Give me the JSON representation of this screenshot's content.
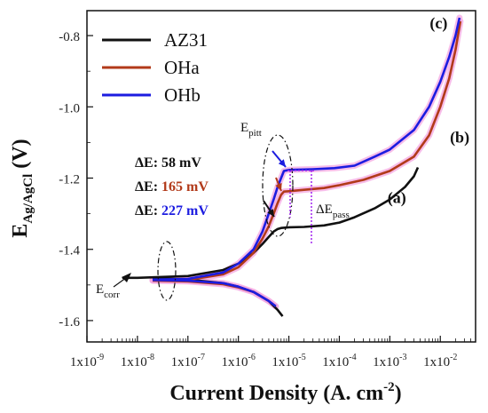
{
  "chart_data": {
    "type": "line",
    "title": "",
    "xlabel": {
      "main": "Current Density (A. cm",
      "sup": "-2",
      "close": ")"
    },
    "ylabel": {
      "main": "E",
      "sub": "Ag/AgCl",
      "rest": " (V)"
    },
    "x_scale": "log",
    "xlim": [
      1e-09,
      0.05
    ],
    "ylim": [
      -1.66,
      -0.73
    ],
    "x_ticks": [
      {
        "value": 1e-09,
        "label": "1x10",
        "exp": "-9"
      },
      {
        "value": 1e-08,
        "label": "1x10",
        "exp": "-8"
      },
      {
        "value": 1e-07,
        "label": "1x10",
        "exp": "-7"
      },
      {
        "value": 1e-06,
        "label": "1x10",
        "exp": "-6"
      },
      {
        "value": 1e-05,
        "label": "1x10",
        "exp": "-5"
      },
      {
        "value": 0.0001,
        "label": "1x10",
        "exp": "-4"
      },
      {
        "value": 0.001,
        "label": "1x10",
        "exp": "-3"
      },
      {
        "value": 0.01,
        "label": "1x10",
        "exp": "-2"
      }
    ],
    "y_ticks": [
      {
        "value": -0.8,
        "label": "-0.8"
      },
      {
        "value": -1.0,
        "label": "-1.0"
      },
      {
        "value": -1.2,
        "label": "-1.2"
      },
      {
        "value": -1.4,
        "label": "-1.4"
      },
      {
        "value": -1.6,
        "label": "-1.6"
      }
    ],
    "grid": false,
    "legend_position": "top-left",
    "series": [
      {
        "name": "AZ31",
        "color": "#111111",
        "highlight": "",
        "tag": "(a)",
        "tag_at": [
          0.0009,
          -1.27
        ],
        "anodic": [
          [
            5e-09,
            -1.48
          ],
          [
            1e-08,
            -1.48
          ],
          [
            1e-07,
            -1.475
          ],
          [
            5e-07,
            -1.458
          ],
          [
            1e-06,
            -1.44
          ],
          [
            2e-06,
            -1.41
          ],
          [
            3e-06,
            -1.385
          ],
          [
            4e-06,
            -1.365
          ],
          [
            5e-06,
            -1.35
          ],
          [
            6e-06,
            -1.343
          ],
          [
            7e-06,
            -1.34
          ],
          [
            1e-05,
            -1.338
          ],
          [
            2e-05,
            -1.337
          ],
          [
            5e-05,
            -1.333
          ],
          [
            0.0001,
            -1.325
          ],
          [
            0.0002,
            -1.31
          ],
          [
            0.0005,
            -1.285
          ],
          [
            0.001,
            -1.26
          ],
          [
            0.002,
            -1.225
          ],
          [
            0.003,
            -1.195
          ],
          [
            0.0036,
            -1.17
          ]
        ],
        "cathodic": [
          [
            2e-08,
            -1.481
          ],
          [
            1e-07,
            -1.485
          ],
          [
            5e-07,
            -1.495
          ],
          [
            1e-06,
            -1.505
          ],
          [
            2e-06,
            -1.52
          ],
          [
            4e-06,
            -1.545
          ],
          [
            6e-06,
            -1.57
          ],
          [
            7.5e-06,
            -1.588
          ]
        ]
      },
      {
        "name": "OHa",
        "color": "#b23a1a",
        "highlight": "#f4a7e2",
        "tag": "(b)",
        "tag_at": [
          0.0155,
          -1.1
        ],
        "anodic": [
          [
            2e-08,
            -1.487
          ],
          [
            1e-07,
            -1.486
          ],
          [
            5e-07,
            -1.47
          ],
          [
            1e-06,
            -1.45
          ],
          [
            2e-06,
            -1.41
          ],
          [
            3e-06,
            -1.37
          ],
          [
            4e-06,
            -1.335
          ],
          [
            5e-06,
            -1.3
          ],
          [
            6e-06,
            -1.27
          ],
          [
            7e-06,
            -1.247
          ],
          [
            8e-06,
            -1.238
          ],
          [
            1e-05,
            -1.237
          ],
          [
            2e-05,
            -1.233
          ],
          [
            5e-05,
            -1.228
          ],
          [
            0.0001,
            -1.22
          ],
          [
            0.0003,
            -1.205
          ],
          [
            0.001,
            -1.18
          ],
          [
            0.003,
            -1.14
          ],
          [
            0.006,
            -1.08
          ],
          [
            0.01,
            -1.0
          ],
          [
            0.015,
            -0.92
          ],
          [
            0.02,
            -0.84
          ],
          [
            0.025,
            -0.76
          ]
        ],
        "cathodic": [
          [
            2e-08,
            -1.488
          ],
          [
            1e-07,
            -1.49
          ],
          [
            5e-07,
            -1.498
          ],
          [
            1e-06,
            -1.507
          ],
          [
            2e-06,
            -1.52
          ],
          [
            4e-06,
            -1.545
          ],
          [
            5.5e-06,
            -1.56
          ]
        ]
      },
      {
        "name": "OHb",
        "color": "#1c1ce0",
        "highlight": "#f4a7e2",
        "tag": "(c)",
        "tag_at": [
          0.0062,
          -0.78
        ],
        "anodic": [
          [
            2e-08,
            -1.485
          ],
          [
            1e-07,
            -1.483
          ],
          [
            5e-07,
            -1.465
          ],
          [
            1e-06,
            -1.44
          ],
          [
            2e-06,
            -1.4
          ],
          [
            3e-06,
            -1.35
          ],
          [
            4e-06,
            -1.3
          ],
          [
            5e-06,
            -1.26
          ],
          [
            6e-06,
            -1.225
          ],
          [
            7e-06,
            -1.2
          ],
          [
            8e-06,
            -1.18
          ],
          [
            1e-05,
            -1.177
          ],
          [
            3e-05,
            -1.175
          ],
          [
            8e-05,
            -1.172
          ],
          [
            0.0002,
            -1.165
          ],
          [
            0.0005,
            -1.14
          ],
          [
            0.001,
            -1.12
          ],
          [
            0.003,
            -1.065
          ],
          [
            0.006,
            -1.0
          ],
          [
            0.01,
            -0.93
          ],
          [
            0.015,
            -0.86
          ],
          [
            0.02,
            -0.8
          ],
          [
            0.024,
            -0.75
          ]
        ],
        "cathodic": [
          [
            2e-08,
            -1.486
          ],
          [
            1e-07,
            -1.488
          ],
          [
            5e-07,
            -1.495
          ],
          [
            1e-06,
            -1.505
          ],
          [
            2e-06,
            -1.52
          ],
          [
            4e-06,
            -1.545
          ],
          [
            5.5e-06,
            -1.56
          ]
        ]
      }
    ],
    "annotations": {
      "e_corr": {
        "main": "E",
        "sub": "corr"
      },
      "e_pitt": {
        "main": "E",
        "sub": "pitt"
      },
      "delta_e_pass": {
        "main": "ΔE",
        "sub": "pass"
      },
      "delta_e": [
        {
          "prefix": "ΔE: ",
          "value": "58 mV",
          "color": "#111111"
        },
        {
          "prefix": "ΔE: ",
          "value": "165 mV",
          "color": "#b23a1a"
        },
        {
          "prefix": "ΔE: ",
          "value": "227 mV",
          "color": "#1c1ce0"
        }
      ],
      "pass_line_color": "#a020f0"
    }
  }
}
